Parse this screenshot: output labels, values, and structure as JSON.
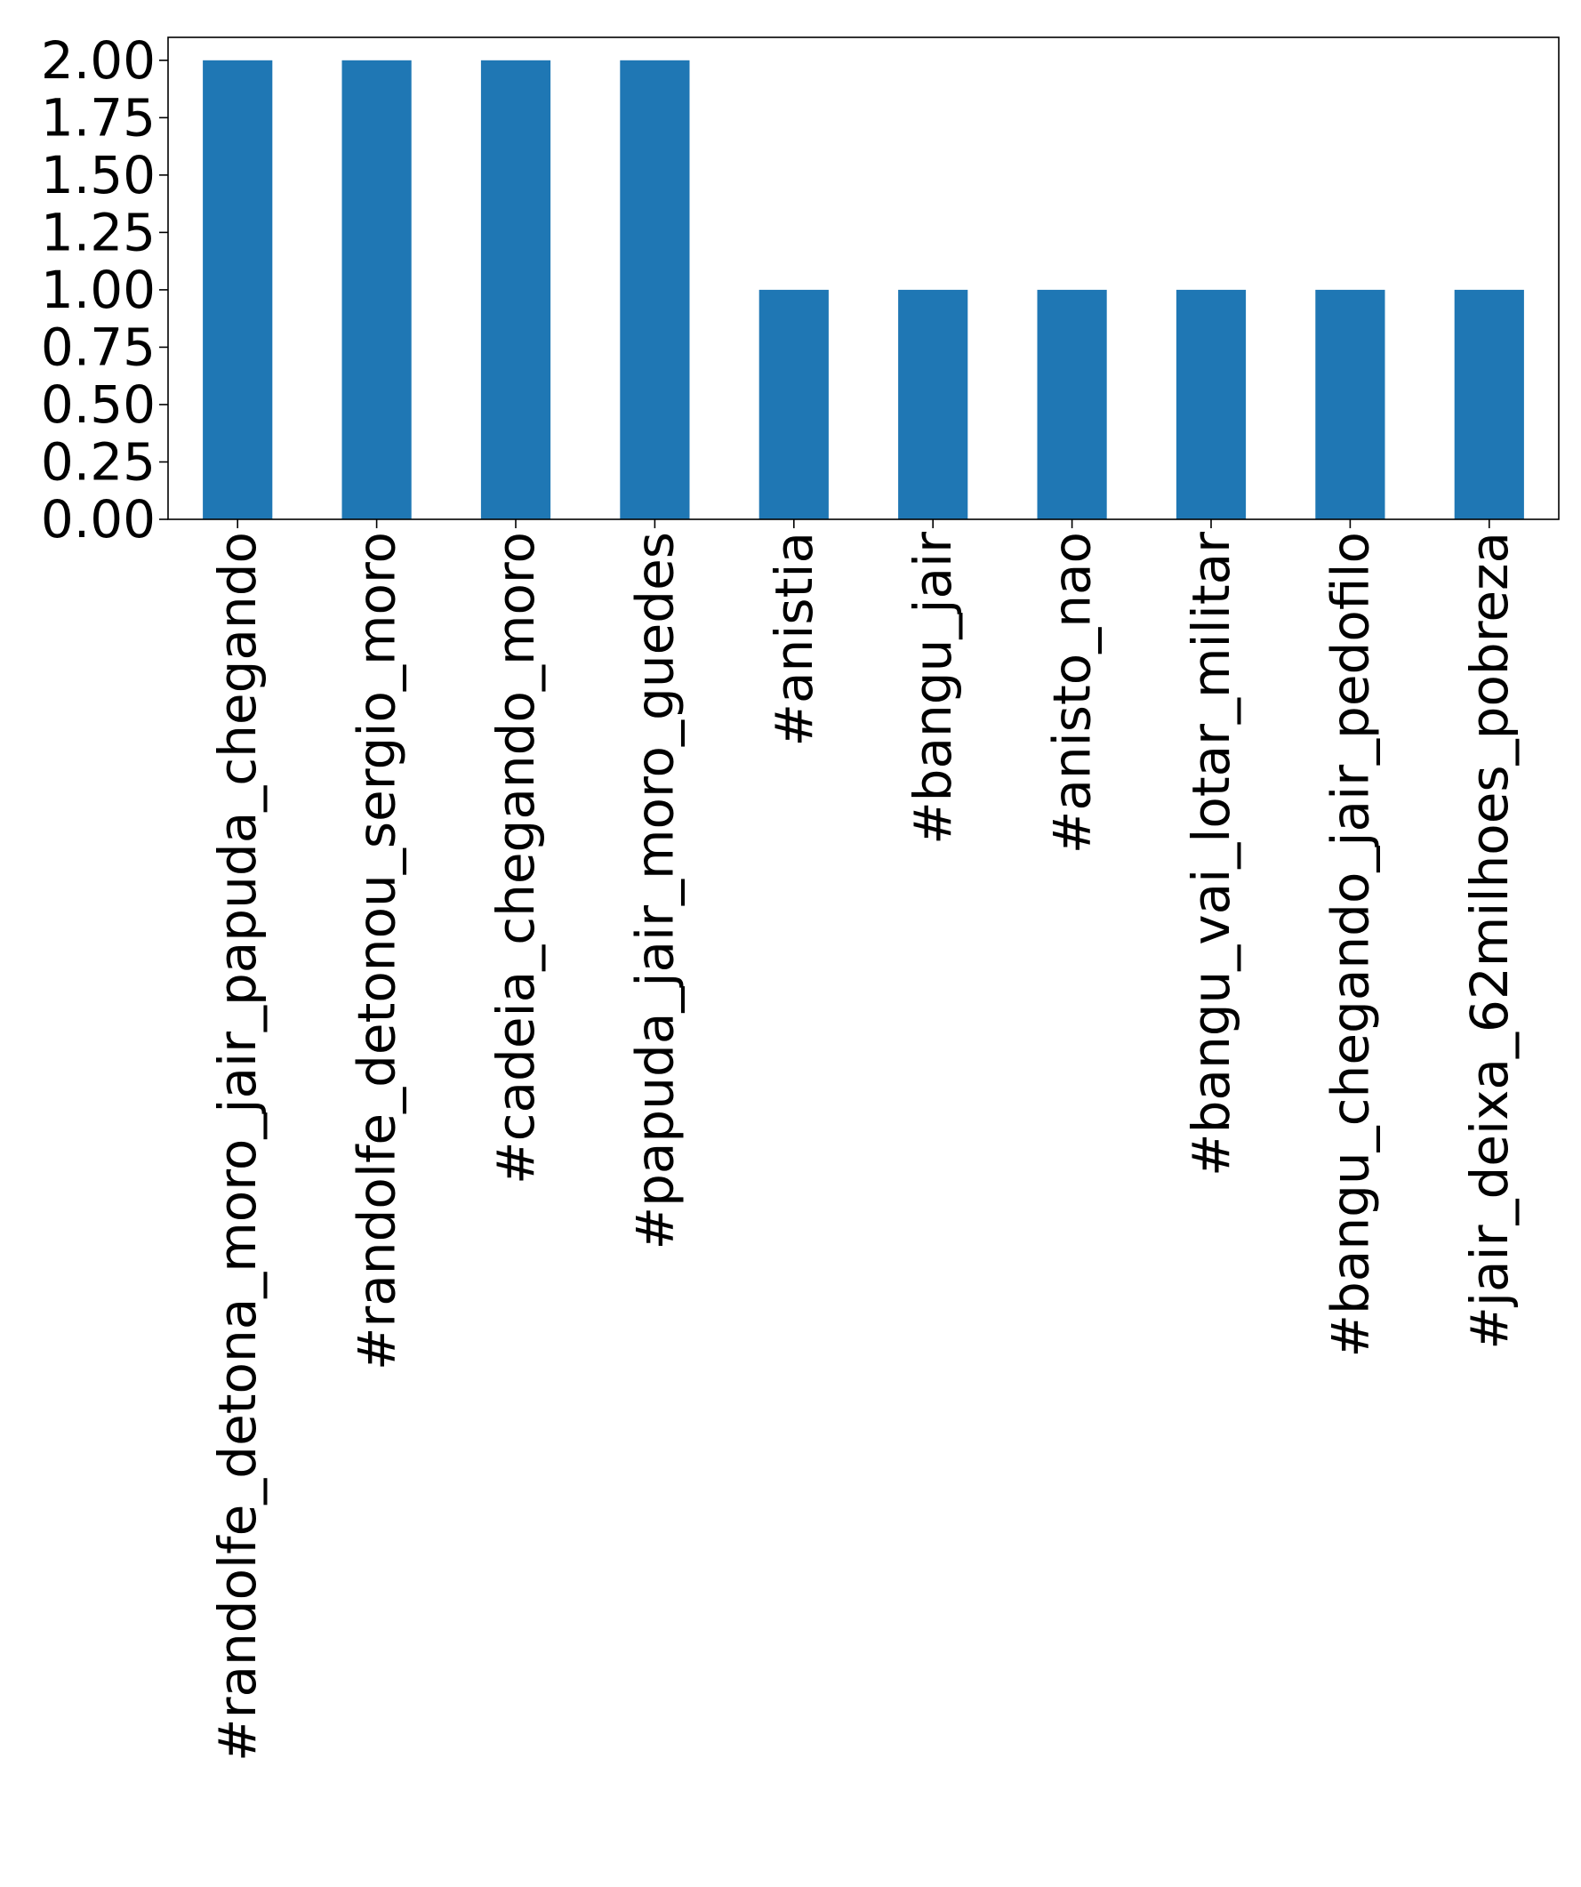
{
  "chart_data": {
    "type": "bar",
    "title": "",
    "xlabel": "",
    "ylabel": "",
    "categories": [
      "#randolfe_detona_moro_jair_papuda_chegando",
      "#randolfe_detonou_sergio_moro",
      "#cadeia_chegando_moro",
      "#papuda_jair_moro_guedes",
      "#anistia",
      "#bangu_jair",
      "#anisto_nao",
      "#bangu_vai_lotar_militar",
      "#bangu_chegando_jair_pedofilo",
      "#jair_deixa_62milhoes_pobreza"
    ],
    "values": [
      2,
      2,
      2,
      2,
      1,
      1,
      1,
      1,
      1,
      1
    ],
    "ylim": [
      0,
      2.1
    ],
    "yticks": [
      "0.00",
      "0.25",
      "0.50",
      "0.75",
      "1.00",
      "1.25",
      "1.50",
      "1.75",
      "2.00"
    ],
    "grid": false,
    "legend": "none",
    "bar_color": "#1f77b4"
  }
}
